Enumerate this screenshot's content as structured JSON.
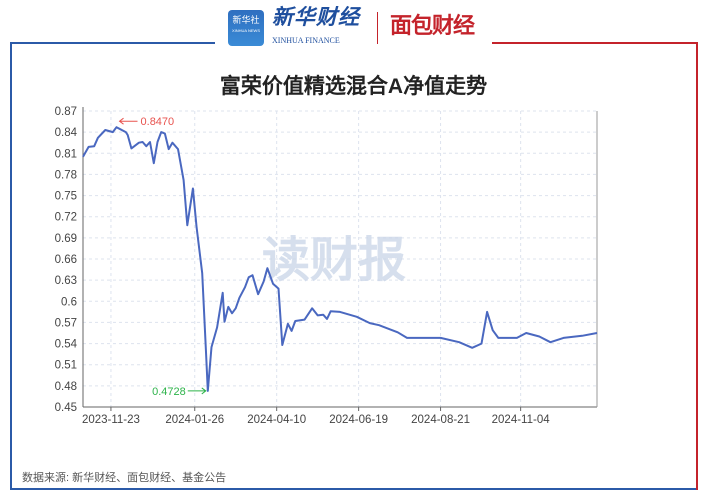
{
  "logos": {
    "xinhua_badge": "新华社",
    "xinhua_badge_sub": "XINHUA NEWS",
    "xinhua_finance": "新华财经",
    "xinhua_finance_en": "XINHUA FINANCE",
    "mianbao": "面包财经"
  },
  "watermark": "读财报",
  "source": "数据来源: 新华财经、面包财经、基金公告",
  "colors": {
    "line": "#4a68c0",
    "max": "#e8534f",
    "min": "#2db34a",
    "frame_left": "#2b5aa8",
    "frame_right": "#c4232b"
  },
  "chart_data": {
    "type": "line",
    "title": "富荣价值精选混合A净值走势",
    "xlabel": "",
    "ylabel": "",
    "x_axis": "trading-day index (category axis)",
    "ylim": [
      0.45,
      0.87
    ],
    "yticks": [
      0.45,
      0.48,
      0.51,
      0.54,
      0.57,
      0.6,
      0.63,
      0.66,
      0.69,
      0.72,
      0.75,
      0.78,
      0.81,
      0.84,
      0.87
    ],
    "ytick_labels": [
      "0.45",
      "0.48",
      "0.51",
      "0.54",
      "0.57",
      "0.6",
      "0.63",
      "0.66",
      "0.69",
      "0.72",
      "0.75",
      "0.78",
      "0.81",
      "0.84",
      "0.87"
    ],
    "xticks": [
      {
        "index": 15,
        "label": "2023-11-23"
      },
      {
        "index": 60,
        "label": "2024-01-26"
      },
      {
        "index": 104,
        "label": "2024-04-10"
      },
      {
        "index": 148,
        "label": "2024-06-19"
      },
      {
        "index": 192,
        "label": "2024-08-21"
      },
      {
        "index": 235,
        "label": "2024-11-04"
      }
    ],
    "xlim": [
      0,
      276
    ],
    "grid": true,
    "points": [
      [
        0,
        0.805
      ],
      [
        3,
        0.819
      ],
      [
        6,
        0.82
      ],
      [
        8,
        0.832
      ],
      [
        12,
        0.843
      ],
      [
        16,
        0.84
      ],
      [
        18,
        0.847
      ],
      [
        23,
        0.84
      ],
      [
        24,
        0.836
      ],
      [
        26,
        0.817
      ],
      [
        30,
        0.825
      ],
      [
        32,
        0.826
      ],
      [
        34,
        0.82
      ],
      [
        36,
        0.826
      ],
      [
        38,
        0.796
      ],
      [
        40,
        0.826
      ],
      [
        42,
        0.84
      ],
      [
        44,
        0.838
      ],
      [
        46,
        0.816
      ],
      [
        48,
        0.825
      ],
      [
        51,
        0.816
      ],
      [
        54,
        0.772
      ],
      [
        56,
        0.708
      ],
      [
        59,
        0.76
      ],
      [
        61,
        0.705
      ],
      [
        64,
        0.64
      ],
      [
        66,
        0.531
      ],
      [
        67,
        0.4728
      ],
      [
        69,
        0.535
      ],
      [
        72,
        0.563
      ],
      [
        75,
        0.612
      ],
      [
        76,
        0.571
      ],
      [
        78,
        0.592
      ],
      [
        80,
        0.583
      ],
      [
        82,
        0.59
      ],
      [
        84,
        0.605
      ],
      [
        87,
        0.62
      ],
      [
        89,
        0.634
      ],
      [
        91,
        0.637
      ],
      [
        94,
        0.61
      ],
      [
        97,
        0.628
      ],
      [
        99,
        0.647
      ],
      [
        102,
        0.625
      ],
      [
        105,
        0.618
      ],
      [
        107,
        0.538
      ],
      [
        110,
        0.568
      ],
      [
        112,
        0.558
      ],
      [
        114,
        0.572
      ],
      [
        119,
        0.574
      ],
      [
        123,
        0.59
      ],
      [
        126,
        0.58
      ],
      [
        129,
        0.581
      ],
      [
        131,
        0.575
      ],
      [
        133,
        0.586
      ],
      [
        138,
        0.585
      ],
      [
        147,
        0.578
      ],
      [
        154,
        0.569
      ],
      [
        159,
        0.566
      ],
      [
        169,
        0.556
      ],
      [
        174,
        0.548
      ],
      [
        181,
        0.548
      ],
      [
        192,
        0.548
      ],
      [
        202,
        0.542
      ],
      [
        209,
        0.534
      ],
      [
        214,
        0.54
      ],
      [
        217,
        0.585
      ],
      [
        220,
        0.559
      ],
      [
        223,
        0.548
      ],
      [
        233,
        0.548
      ],
      [
        238,
        0.555
      ],
      [
        245,
        0.55
      ],
      [
        251,
        0.542
      ],
      [
        258,
        0.548
      ],
      [
        268,
        0.551
      ],
      [
        276,
        0.555
      ]
    ],
    "annotations": [
      {
        "type": "max",
        "index": 18,
        "value": 0.847,
        "label": "0.8470"
      },
      {
        "type": "min",
        "index": 67,
        "value": 0.4728,
        "label": "0.4728"
      }
    ]
  }
}
